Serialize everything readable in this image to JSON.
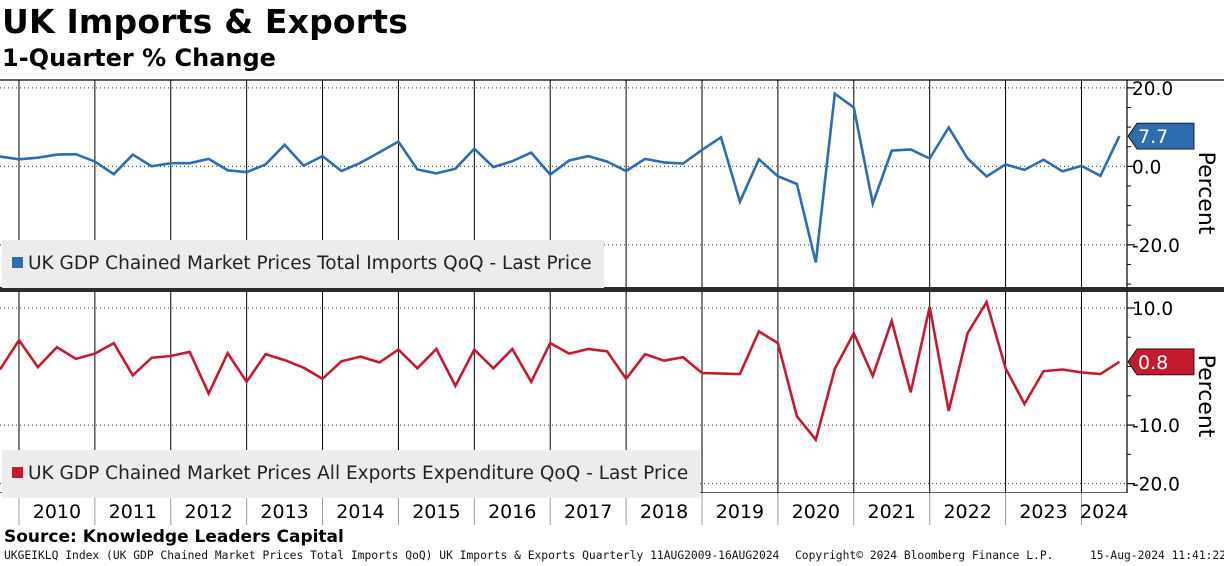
{
  "title": "UK Imports & Exports",
  "subtitle": "1-Quarter % Change",
  "source": "Source: Knowledge Leaders Capital",
  "footer": {
    "description": "UKGEIKLQ Index (UK GDP Chained Market Prices Total Imports QoQ) UK Imports & Exports  Quarterly 11AUG2009-16AUG2024",
    "copyright": "Copyright© 2024 Bloomberg Finance L.P.",
    "timestamp": "15-Aug-2024 11:41:22"
  },
  "colors": {
    "imports": "#2e6cb0",
    "exports": "#c41a30",
    "grid": "#000000"
  },
  "chart_data": [
    {
      "type": "line",
      "name": "imports",
      "legend": "UK GDP Chained Market Prices Total Imports QoQ - Last Price",
      "ylabel": "Percent",
      "ylim": [
        -31,
        22
      ],
      "yticks": [
        20,
        0,
        -20
      ],
      "ytick_labels": [
        "20.0",
        "0.0",
        "-20.0"
      ],
      "last_value_label": "7.7",
      "x_start": 2009.75,
      "x_step": 0.25,
      "values": [
        2.5,
        1.8,
        2.2,
        3.0,
        3.1,
        1.2,
        -2.0,
        3.0,
        0.0,
        0.8,
        0.8,
        1.9,
        -1.0,
        -1.5,
        0.5,
        5.5,
        0.2,
        2.6,
        -1.2,
        0.9,
        3.6,
        6.3,
        -0.8,
        -1.8,
        -0.6,
        4.5,
        -0.2,
        1.3,
        3.5,
        -2.1,
        1.5,
        2.6,
        1.2,
        -1.2,
        1.9,
        1.0,
        0.7,
        4.2,
        7.4,
        -9.0,
        1.8,
        -2.5,
        -4.5,
        -24.5,
        18.5,
        15.0,
        -9.5,
        4.0,
        4.3,
        2.0,
        9.9,
        2.0,
        -2.6,
        0.5,
        -0.9,
        1.7,
        -1.3,
        0.1,
        -2.4,
        7.7
      ]
    },
    {
      "type": "line",
      "name": "exports",
      "legend": "UK GDP Chained Market Prices All Exports Expenditure QoQ - Last Price",
      "ylabel": "Percent",
      "ylim": [
        -21.6,
        12.9
      ],
      "yticks": [
        10,
        -10,
        -20
      ],
      "ytick_labels": [
        "10.0",
        "-10.0",
        "-20.0"
      ],
      "last_value_label": "0.8",
      "x_start": 2009.75,
      "x_step": 0.25,
      "values": [
        -0.5,
        4.5,
        -0.1,
        3.3,
        1.3,
        2.2,
        4.0,
        -1.5,
        1.5,
        1.8,
        2.5,
        -4.6,
        2.3,
        -2.6,
        2.1,
        1.1,
        -0.2,
        -2.1,
        0.9,
        1.7,
        0.7,
        2.9,
        -0.3,
        3.0,
        -3.3,
        2.9,
        -0.3,
        3.0,
        -2.6,
        4.0,
        2.2,
        3.0,
        2.6,
        -2.1,
        2.1,
        1.0,
        1.6,
        -1.1,
        -1.2,
        -1.3,
        6.0,
        4.0,
        -8.5,
        -12.5,
        -0.4,
        5.7,
        -1.6,
        7.8,
        -4.4,
        10.2,
        -7.6,
        5.7,
        11.0,
        -0.3,
        -6.4,
        -0.8,
        -0.5,
        -1.0,
        -1.3,
        0.8
      ]
    }
  ],
  "x_axis": {
    "years": [
      "2010",
      "2011",
      "2012",
      "2013",
      "2014",
      "2015",
      "2016",
      "2017",
      "2018",
      "2019",
      "2020",
      "2021",
      "2022",
      "2023",
      "2024"
    ],
    "range": [
      2009.75,
      2024.6
    ]
  }
}
